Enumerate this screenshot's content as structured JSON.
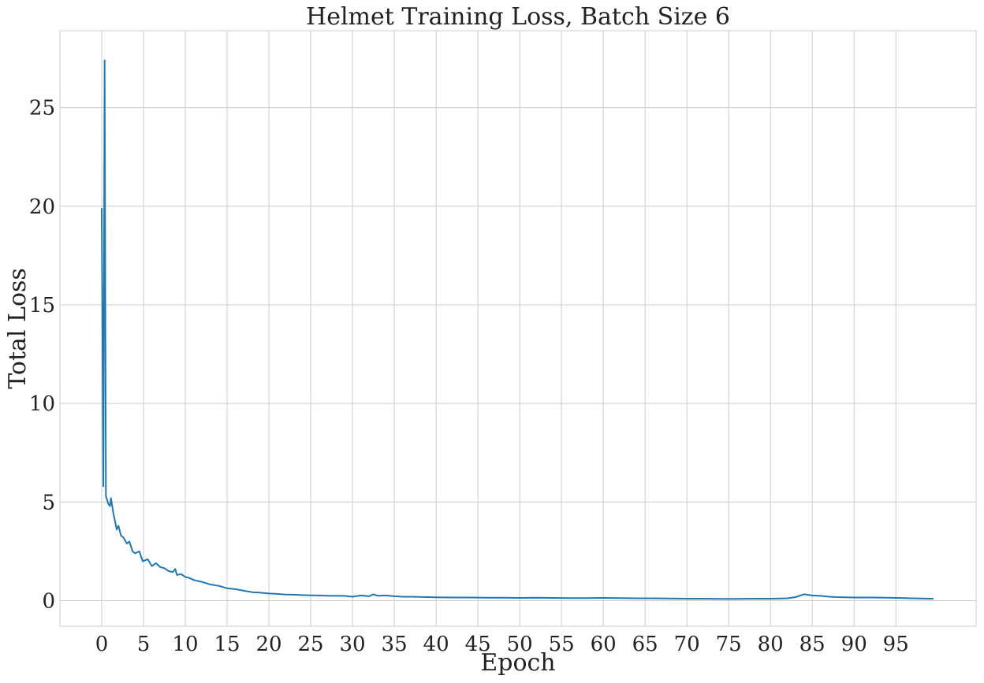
{
  "chart_data": {
    "type": "line",
    "title": "Helmet Training Loss, Batch Size 6",
    "xlabel": "Epoch",
    "ylabel": "Total Loss",
    "xlim": [
      -5,
      104.6
    ],
    "ylim": [
      -1.3,
      28.9
    ],
    "x_ticks": [
      0,
      5,
      10,
      15,
      20,
      25,
      30,
      35,
      40,
      45,
      50,
      55,
      60,
      65,
      70,
      75,
      80,
      85,
      90,
      95
    ],
    "y_ticks": [
      0,
      5,
      10,
      15,
      20,
      25
    ],
    "grid": true,
    "series": [
      {
        "color": "#1f77b4",
        "points": [
          [
            0.0,
            19.9
          ],
          [
            0.2,
            5.8
          ],
          [
            0.35,
            27.4
          ],
          [
            0.5,
            5.3
          ],
          [
            0.8,
            4.9
          ],
          [
            1.0,
            4.8
          ],
          [
            1.1,
            5.2
          ],
          [
            1.4,
            4.4
          ],
          [
            1.8,
            3.6
          ],
          [
            2.0,
            3.8
          ],
          [
            2.3,
            3.3
          ],
          [
            2.6,
            3.2
          ],
          [
            3.0,
            2.9
          ],
          [
            3.3,
            3.0
          ],
          [
            3.7,
            2.5
          ],
          [
            4.0,
            2.4
          ],
          [
            4.5,
            2.5
          ],
          [
            4.9,
            2.0
          ],
          [
            5.5,
            2.1
          ],
          [
            6.0,
            1.75
          ],
          [
            6.5,
            1.9
          ],
          [
            7.0,
            1.7
          ],
          [
            7.5,
            1.65
          ],
          [
            8.0,
            1.5
          ],
          [
            8.5,
            1.45
          ],
          [
            8.8,
            1.6
          ],
          [
            9.0,
            1.3
          ],
          [
            9.5,
            1.35
          ],
          [
            10.0,
            1.2
          ],
          [
            10.5,
            1.15
          ],
          [
            11.0,
            1.05
          ],
          [
            12.0,
            0.95
          ],
          [
            13.0,
            0.82
          ],
          [
            14.0,
            0.75
          ],
          [
            15.0,
            0.63
          ],
          [
            16.0,
            0.58
          ],
          [
            17.0,
            0.5
          ],
          [
            18.0,
            0.43
          ],
          [
            19.0,
            0.4
          ],
          [
            20.0,
            0.36
          ],
          [
            21.0,
            0.34
          ],
          [
            22.0,
            0.31
          ],
          [
            23.0,
            0.3
          ],
          [
            24.0,
            0.28
          ],
          [
            25.0,
            0.27
          ],
          [
            26.0,
            0.26
          ],
          [
            27.0,
            0.25
          ],
          [
            28.0,
            0.24
          ],
          [
            29.0,
            0.24
          ],
          [
            30.0,
            0.2
          ],
          [
            31.0,
            0.26
          ],
          [
            32.0,
            0.22
          ],
          [
            32.5,
            0.32
          ],
          [
            33.0,
            0.25
          ],
          [
            34.0,
            0.26
          ],
          [
            35.0,
            0.22
          ],
          [
            36.0,
            0.2
          ],
          [
            37.0,
            0.2
          ],
          [
            38.0,
            0.19
          ],
          [
            39.0,
            0.18
          ],
          [
            40.0,
            0.17
          ],
          [
            42.0,
            0.16
          ],
          [
            44.0,
            0.16
          ],
          [
            46.0,
            0.15
          ],
          [
            48.0,
            0.15
          ],
          [
            50.0,
            0.14
          ],
          [
            52.0,
            0.15
          ],
          [
            54.0,
            0.14
          ],
          [
            56.0,
            0.13
          ],
          [
            58.0,
            0.13
          ],
          [
            60.0,
            0.14
          ],
          [
            62.0,
            0.13
          ],
          [
            64.0,
            0.12
          ],
          [
            66.0,
            0.12
          ],
          [
            68.0,
            0.11
          ],
          [
            70.0,
            0.1
          ],
          [
            72.0,
            0.1
          ],
          [
            74.0,
            0.09
          ],
          [
            76.0,
            0.09
          ],
          [
            78.0,
            0.1
          ],
          [
            80.0,
            0.1
          ],
          [
            82.0,
            0.12
          ],
          [
            83.0,
            0.18
          ],
          [
            84.0,
            0.32
          ],
          [
            85.0,
            0.26
          ],
          [
            86.0,
            0.24
          ],
          [
            87.0,
            0.2
          ],
          [
            88.0,
            0.18
          ],
          [
            90.0,
            0.16
          ],
          [
            92.0,
            0.16
          ],
          [
            94.0,
            0.15
          ],
          [
            96.0,
            0.13
          ],
          [
            98.0,
            0.11
          ],
          [
            99.5,
            0.1
          ]
        ]
      }
    ]
  }
}
